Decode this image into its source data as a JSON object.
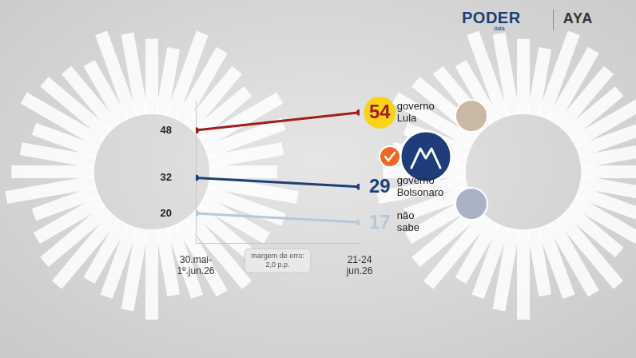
{
  "chart_data": {
    "type": "line",
    "categories": [
      "30.mai-1º.jun.26",
      "21-24 jun.26"
    ],
    "series": [
      {
        "name": "governo Lula",
        "color": "#a11d1d",
        "values": [
          48,
          54
        ]
      },
      {
        "name": "governo Bolsonaro",
        "color": "#1d3f77",
        "values": [
          32,
          29
        ]
      },
      {
        "name": "não sabe",
        "color": "#b7c8d8",
        "values": [
          20,
          17
        ]
      }
    ],
    "ylim": [
      10,
      58
    ],
    "yticks": [],
    "grid": false,
    "data_labels": true,
    "tick_labels": "x",
    "marker": "circle",
    "annotations": [
      "margem de erro: 2,0 p.p."
    ],
    "logo_texts": [
      "PODER",
      "data",
      "AYA"
    ]
  }
}
